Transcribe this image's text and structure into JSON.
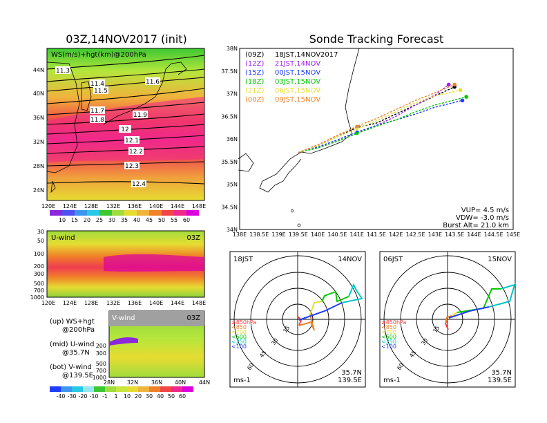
{
  "left_title": "03Z,14NOV2017 (init)",
  "right_title": "Sonde Tracking Forecast",
  "map_panel": {
    "label": "WS(m/s)+hgt(km)@200hPa",
    "lat_labels": [
      "44N",
      "40N",
      "36N",
      "32N",
      "28N",
      "24N"
    ],
    "lon_labels": [
      "120E",
      "124E",
      "128E",
      "132E",
      "136E",
      "140E",
      "144E",
      "148E"
    ],
    "contour_labels": [
      "11.3",
      "11.4",
      "11.5",
      "11.6",
      "11.7",
      "11.8",
      "11.9",
      "12",
      "12.1",
      "12.2",
      "12.3",
      "12.4"
    ],
    "colorbar": [
      "10",
      "15",
      "20",
      "25",
      "30",
      "35",
      "40",
      "45",
      "50",
      "55",
      "60"
    ]
  },
  "uwind_panel": {
    "label": "U-wind",
    "time": "03Z",
    "p_labels": [
      "30",
      "50",
      "100",
      "200",
      "300",
      "500",
      "700",
      "1000"
    ],
    "lon_labels": [
      "120E",
      "124E",
      "128E",
      "132E",
      "136E",
      "140E",
      "144E",
      "148E"
    ]
  },
  "vwind_panel": {
    "label": "V-wind",
    "time": "03Z",
    "p_labels": [
      "200",
      "300",
      "500",
      "700",
      "1000"
    ],
    "lat_labels": [
      "28N",
      "32N",
      "36N",
      "40N",
      "44N"
    ],
    "colorbar": [
      "-40",
      "-30",
      "-20",
      "-10",
      "-1",
      "1",
      "10",
      "20",
      "30",
      "40",
      "50",
      "60"
    ]
  },
  "legend_notes": [
    {
      "a": "(up) WS+hgt",
      "b": "@200hPa"
    },
    {
      "a": "(mid) U-wind",
      "b": "@35.7N"
    },
    {
      "a": "(bot) V-wind",
      "b": "@139.5E"
    }
  ],
  "track_panel": {
    "lat_labels": [
      "38N",
      "37.5N",
      "37N",
      "36.5N",
      "36N",
      "35.5N",
      "35N",
      "34.5N",
      "34N"
    ],
    "lon_labels": [
      "138E",
      "138.5E",
      "139E",
      "139.5E",
      "140E",
      "140.5E",
      "141E",
      "141.5E",
      "142E",
      "142.5E",
      "143E",
      "143.5E",
      "144E",
      "144.5E",
      "145E"
    ],
    "legend": [
      {
        "code": "(09Z)",
        "time": "18JST,14NOV2017",
        "color": "#000000"
      },
      {
        "code": "(12Z)",
        "time": "21JST,14NOV",
        "color": "#a020f0"
      },
      {
        "code": "(15Z)",
        "time": "00JST,15NOV",
        "color": "#1e3cff"
      },
      {
        "code": "(18Z)",
        "time": "03JST,15NOV",
        "color": "#00c800"
      },
      {
        "code": "(21Z)",
        "time": "06JST,15NOV",
        "color": "#e6dc32"
      },
      {
        "code": "(00Z)",
        "time": "09JST,15NOV",
        "color": "#f08228"
      }
    ],
    "vup": "VUP=  4.5  m/s",
    "vdw": "VDW= -3.0  m/s",
    "burst": "Burst Alt=  21.0  km"
  },
  "hodo1": {
    "time": "18JST",
    "date": "14NOV",
    "lat": "35.7N",
    "lon": "139.5E",
    "unit": "ms-1",
    "rings": [
      "15",
      "30",
      "45",
      "60"
    ]
  },
  "hodo2": {
    "time": "06JST",
    "date": "15NOV",
    "lat": "35.7N",
    "lon": "139.5E",
    "unit": "ms-1",
    "rings": [
      "15",
      "30",
      "45",
      "60"
    ]
  },
  "hodo_legend": [
    {
      "text": "≥850hPa",
      "color": "#ff3c3c"
    },
    {
      "text": "<850",
      "color": "#f08228"
    },
    {
      "text": "<700",
      "color": "#e6dc32"
    },
    {
      "text": "<500",
      "color": "#00c800"
    },
    {
      "text": "<250",
      "color": "#00c8c8"
    },
    {
      "text": "<100",
      "color": "#1e3cff"
    }
  ],
  "chart_data": {
    "type": "line",
    "title": "Sonde Tracking Forecast",
    "xlim": [
      138,
      145
    ],
    "ylim": [
      34,
      38
    ],
    "launch": {
      "lon": 139.5,
      "lat": 35.7
    },
    "series": [
      {
        "name": "(09Z) 18JST,14NOV2017",
        "color": "#000000",
        "points": [
          [
            139.5,
            35.7
          ],
          [
            140.0,
            35.85
          ],
          [
            140.5,
            36.05
          ],
          [
            141.0,
            36.25
          ],
          [
            141.5,
            36.35
          ],
          [
            142.0,
            36.55
          ],
          [
            142.5,
            36.75
          ],
          [
            143.0,
            36.95
          ],
          [
            143.5,
            37.15
          ]
        ]
      },
      {
        "name": "(12Z) 21JST,14NOV",
        "color": "#a020f0",
        "points": [
          [
            139.5,
            35.7
          ],
          [
            140.0,
            35.8
          ],
          [
            140.5,
            35.95
          ],
          [
            141.0,
            36.12
          ],
          [
            141.5,
            36.3
          ],
          [
            142.0,
            36.5
          ],
          [
            142.5,
            36.75
          ],
          [
            143.0,
            36.97
          ],
          [
            143.35,
            37.2
          ]
        ]
      },
      {
        "name": "(15Z) 00JST,15NOV",
        "color": "#1e3cff",
        "points": [
          [
            139.5,
            35.7
          ],
          [
            140.0,
            35.82
          ],
          [
            140.5,
            35.98
          ],
          [
            141.0,
            36.15
          ],
          [
            141.5,
            36.3
          ],
          [
            142.0,
            36.42
          ],
          [
            142.5,
            36.55
          ],
          [
            143.0,
            36.7
          ],
          [
            143.7,
            36.85
          ]
        ]
      },
      {
        "name": "(18Z) 03JST,15NOV",
        "color": "#00c800",
        "points": [
          [
            139.5,
            35.7
          ],
          [
            140.0,
            35.8
          ],
          [
            140.5,
            35.95
          ],
          [
            141.0,
            36.12
          ],
          [
            141.5,
            36.28
          ],
          [
            142.0,
            36.42
          ],
          [
            142.5,
            36.6
          ],
          [
            143.0,
            36.75
          ],
          [
            143.8,
            36.93
          ]
        ]
      },
      {
        "name": "(21Z) 06JST,15NOV",
        "color": "#e6dc32",
        "points": [
          [
            139.5,
            35.7
          ],
          [
            140.0,
            35.85
          ],
          [
            140.5,
            36.05
          ],
          [
            141.0,
            36.22
          ],
          [
            141.5,
            36.4
          ],
          [
            142.0,
            36.6
          ],
          [
            142.5,
            36.8
          ],
          [
            143.0,
            36.95
          ],
          [
            143.65,
            37.08
          ]
        ]
      },
      {
        "name": "(00Z) 09JST,15NOV",
        "color": "#f08228",
        "points": [
          [
            139.5,
            35.7
          ],
          [
            140.0,
            35.87
          ],
          [
            140.5,
            36.08
          ],
          [
            141.0,
            36.28
          ],
          [
            141.5,
            36.45
          ],
          [
            142.0,
            36.65
          ],
          [
            142.5,
            36.85
          ],
          [
            143.0,
            37.02
          ],
          [
            143.5,
            37.2
          ]
        ]
      }
    ]
  }
}
